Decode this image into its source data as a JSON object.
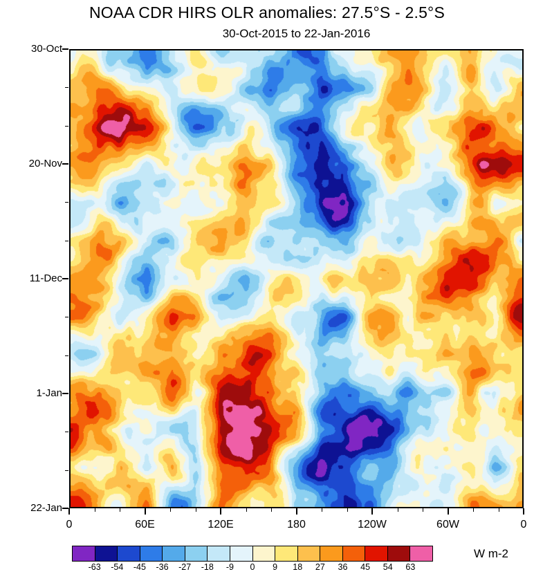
{
  "chart_data": {
    "type": "heatmap",
    "title": "NOAA CDR HIRS OLR anomalies: 27.5°S - 2.5°S",
    "subtitle": "30-Oct-2015 to 22-Jan-2016",
    "units_label": "W m-2",
    "x_axis": {
      "label_ticks": [
        "0",
        "60E",
        "120E",
        "180",
        "120W",
        "60W",
        "0"
      ],
      "minor_divisions": 18
    },
    "y_axis": {
      "label_ticks": [
        "30-Oct",
        "20-Nov",
        "11-Dec",
        "1-Jan",
        "22-Jan"
      ],
      "minor_divisions": 12
    },
    "colorbar": {
      "levels": [
        -63,
        -54,
        -45,
        -36,
        -27,
        -18,
        -9,
        0,
        9,
        18,
        27,
        36,
        45,
        54,
        63
      ],
      "tick_labels": [
        "-63",
        "-54",
        "-45",
        "-36",
        "-27",
        "-18",
        "-9",
        "0",
        "9",
        "18",
        "27",
        "36",
        "45",
        "54",
        "63"
      ],
      "colors": [
        "#8026c3",
        "#0e1293",
        "#1d49cf",
        "#2e7ce8",
        "#54aaea",
        "#8cd0f0",
        "#c4e8f8",
        "#e4f4fb",
        "#fdf5cd",
        "#fee878",
        "#fdc04d",
        "#fb9a1d",
        "#f4600a",
        "#e11400",
        "#9e0c0c",
        "#ef5fa7"
      ]
    },
    "field": {
      "value_range": [
        -81,
        81
      ],
      "base_grid": [
        [
          10,
          25,
          10,
          -5,
          5,
          15,
          -20,
          5,
          18,
          -10,
          -25,
          -15,
          0,
          10,
          5,
          -10,
          30,
          20,
          10
        ],
        [
          15,
          35,
          20,
          0,
          -15,
          10,
          25,
          10,
          -20,
          10,
          -30,
          -35,
          -10,
          5,
          10,
          -5,
          35,
          -15,
          15
        ],
        [
          5,
          20,
          35,
          10,
          -10,
          -20,
          15,
          30,
          10,
          -15,
          -35,
          -20,
          5,
          15,
          -5,
          10,
          45,
          25,
          5
        ],
        [
          20,
          40,
          15,
          -10,
          5,
          20,
          35,
          40,
          20,
          -25,
          -40,
          -30,
          -10,
          20,
          10,
          5,
          40,
          30,
          20
        ],
        [
          10,
          15,
          -15,
          5,
          25,
          10,
          20,
          45,
          25,
          -10,
          -35,
          -45,
          -20,
          5,
          15,
          10,
          20,
          -20,
          10
        ],
        [
          -10,
          20,
          25,
          15,
          -10,
          20,
          30,
          25,
          -15,
          -30,
          -20,
          -35,
          -15,
          -5,
          10,
          15,
          35,
          25,
          -10
        ],
        [
          15,
          30,
          10,
          -20,
          10,
          25,
          15,
          -10,
          20,
          25,
          -15,
          -25,
          -30,
          -10,
          5,
          20,
          40,
          15,
          15
        ],
        [
          20,
          15,
          -10,
          10,
          30,
          15,
          -15,
          10,
          30,
          10,
          -20,
          -35,
          -15,
          5,
          15,
          10,
          30,
          -10,
          20
        ],
        [
          10,
          -15,
          15,
          25,
          10,
          -20,
          15,
          40,
          45,
          20,
          -30,
          -40,
          -20,
          -10,
          10,
          25,
          20,
          15,
          10
        ],
        [
          25,
          35,
          15,
          -10,
          15,
          -25,
          20,
          55,
          60,
          30,
          -25,
          -45,
          -30,
          -15,
          5,
          15,
          30,
          -20,
          25
        ],
        [
          15,
          20,
          -20,
          10,
          -15,
          -30,
          30,
          60,
          50,
          25,
          -35,
          -30,
          -20,
          -25,
          10,
          20,
          25,
          15,
          15
        ],
        [
          5,
          -10,
          15,
          -25,
          20,
          -35,
          45,
          50,
          40,
          -20,
          -40,
          -25,
          -30,
          -15,
          15,
          25,
          35,
          -10,
          5
        ],
        [
          20,
          15,
          -15,
          10,
          -30,
          15,
          35,
          40,
          30,
          -25,
          -30,
          -35,
          -20,
          10,
          20,
          15,
          30,
          20,
          20
        ]
      ],
      "noise": {
        "seed": 20160122,
        "base_frequency": 6,
        "octaves": 4,
        "octave_gain": 0.62,
        "amplitude": 40
      }
    }
  }
}
